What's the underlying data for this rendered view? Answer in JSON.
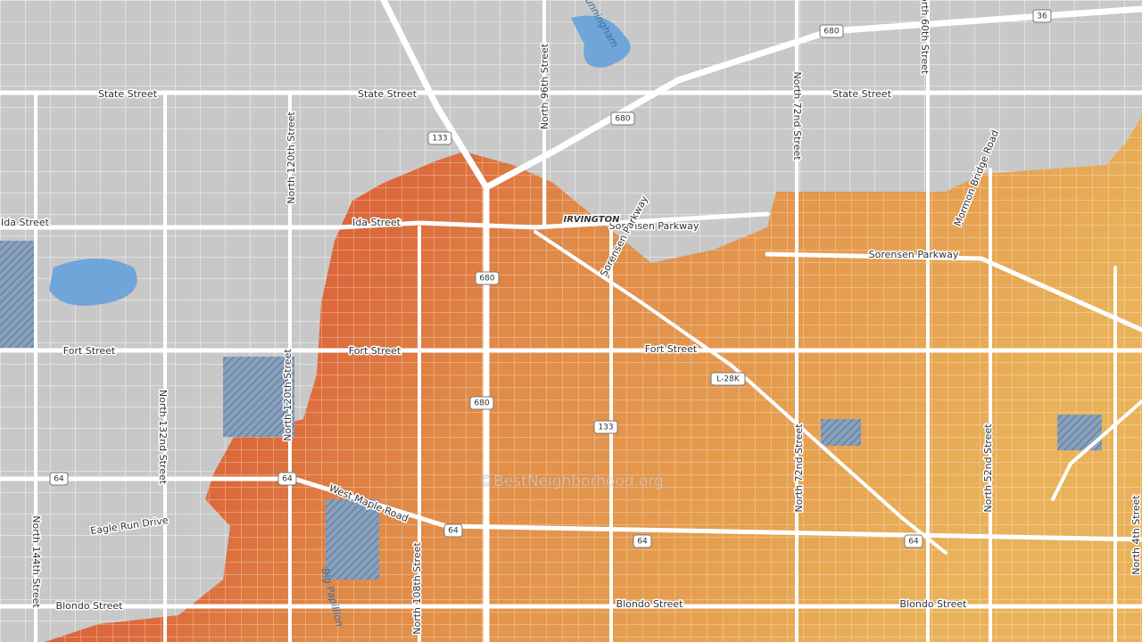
{
  "map": {
    "street_labels": [
      "State Street",
      "State Street",
      "State Street",
      "Ida Street",
      "Ida Street",
      "Sorensen Parkway",
      "Sorensen Parkway",
      "Sorensen Parkway",
      "Fort Street",
      "Fort Street",
      "Fort Street",
      "West Maple Road",
      "Eagle Run Drive",
      "Blondo Street",
      "Blondo Street",
      "Blondo Street",
      "North 96th Street",
      "North 120th Street",
      "North 120th Street",
      "North 132nd Street",
      "North 144th Street",
      "North 108th Street",
      "North 72nd Street",
      "North 72nd Street",
      "North 52nd Street",
      "North 60th Street",
      "Mormon Bridge Road",
      "North 4th Street"
    ],
    "water_labels": [
      "Cunningham",
      "Big Papillion"
    ],
    "place_labels": [
      "IRVINGTON"
    ],
    "highway_shields": [
      "680",
      "680",
      "680",
      "680",
      "133",
      "133",
      "64",
      "64",
      "64",
      "64",
      "64",
      "36",
      "L-28K"
    ],
    "watermark": "©BestNeighborhood.org"
  }
}
